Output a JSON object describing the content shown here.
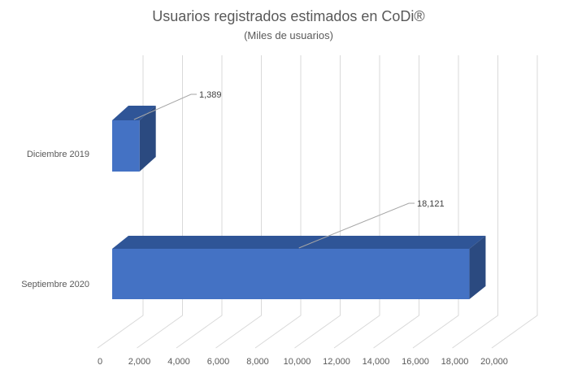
{
  "chart_data": {
    "type": "bar",
    "orientation": "horizontal",
    "style": "3d",
    "title": "Usuarios registrados estimados en CoDi®",
    "subtitle": "(Miles de usuarios)",
    "categories": [
      "Diciembre 2019",
      "Septiembre 2020"
    ],
    "values": [
      1389,
      18121
    ],
    "data_labels": [
      "1,389",
      "18,121"
    ],
    "xlim": [
      0,
      20000
    ],
    "x_ticks": [
      0,
      2000,
      4000,
      6000,
      8000,
      10000,
      12000,
      14000,
      16000,
      18000,
      20000
    ],
    "x_tick_labels": [
      "0",
      "2,000",
      "4,000",
      "6,000",
      "8,000",
      "10,000",
      "12,000",
      "14,000",
      "16,000",
      "18,000",
      "20,000"
    ],
    "grid": true,
    "legend": "none",
    "colors": {
      "front": "#4472C4",
      "top": "#2F5597",
      "side": "#2B4A80",
      "grid": "#D9D9D9",
      "text": "#595959"
    }
  }
}
